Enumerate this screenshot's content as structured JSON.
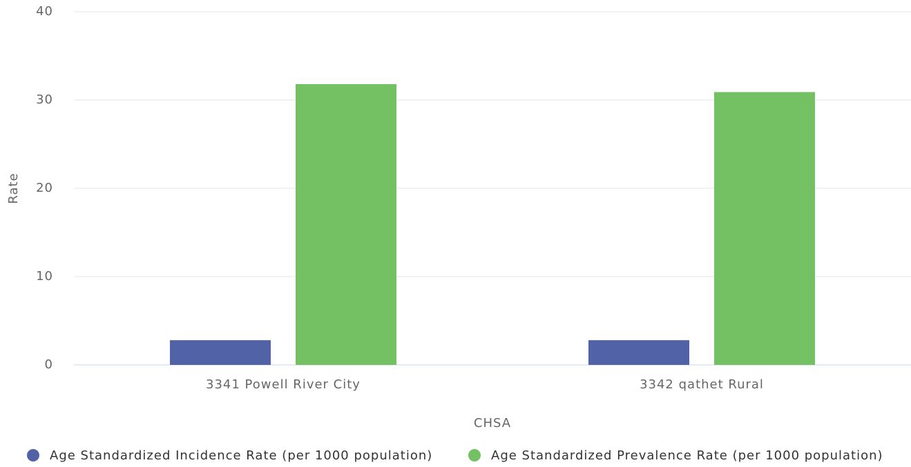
{
  "chart_data": {
    "type": "bar",
    "categories": [
      "3341 Powell River City",
      "3342 qathet Rural"
    ],
    "series": [
      {
        "name": "Age Standardized Incidence Rate (per 1000 population)",
        "color": "#5262a6",
        "values": [
          2.8,
          2.8
        ]
      },
      {
        "name": "Age Standardized Prevalence Rate (per 1000 population)",
        "color": "#73c163",
        "values": [
          31.8,
          30.9
        ]
      }
    ],
    "xlabel": "CHSA",
    "ylabel": "Rate",
    "ylim": [
      0,
      40
    ],
    "yticks": [
      0,
      10,
      20,
      30,
      40
    ],
    "grid": true,
    "legend": "bottom"
  }
}
